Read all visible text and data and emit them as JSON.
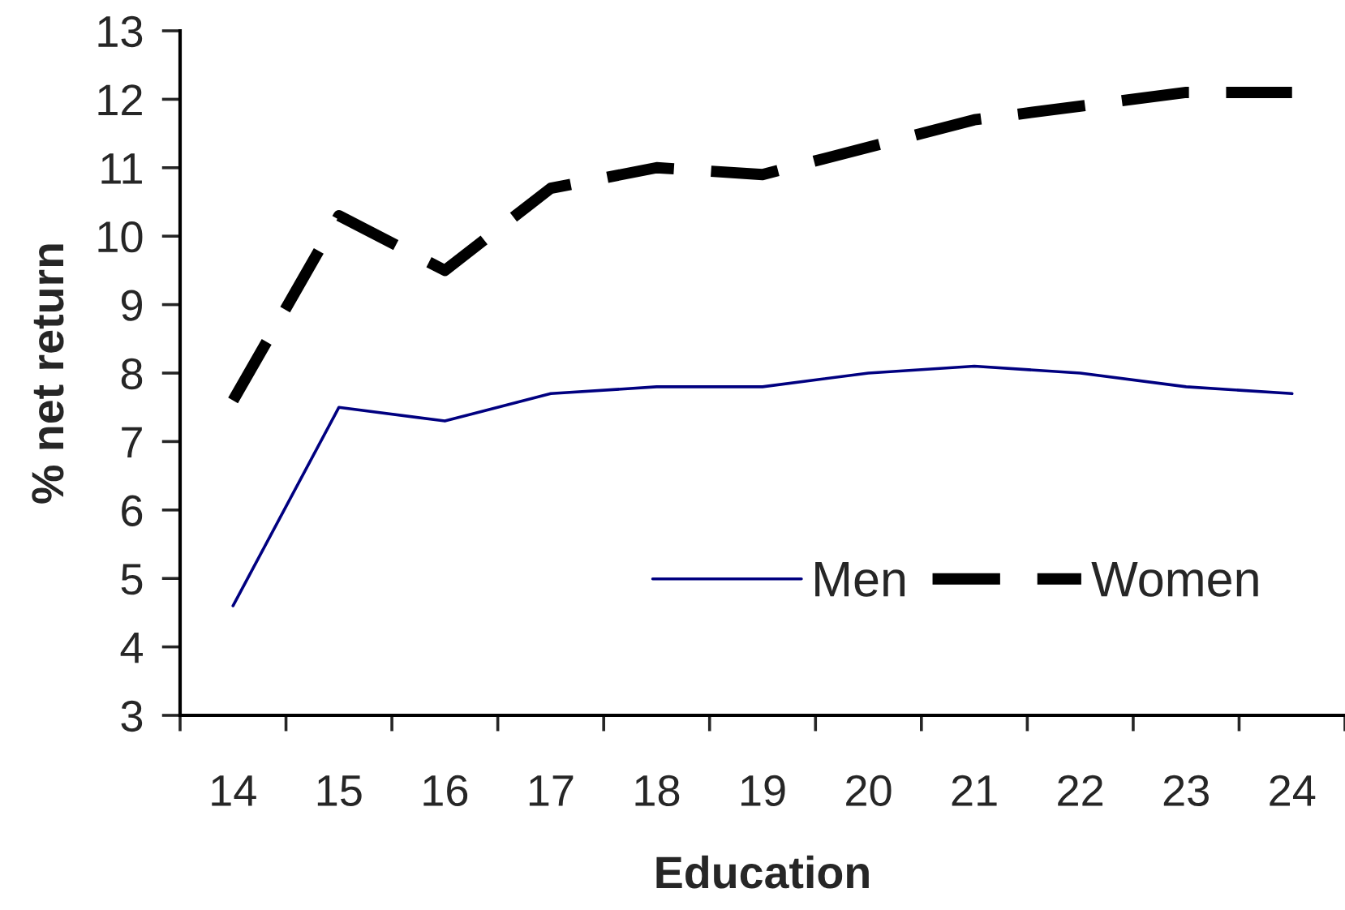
{
  "chart_data": {
    "type": "line",
    "xlabel": "Education",
    "ylabel": "% net return",
    "categories": [
      "14",
      "15",
      "16",
      "17",
      "18",
      "19",
      "20",
      "21",
      "22",
      "23",
      "24"
    ],
    "ylim": [
      3,
      13
    ],
    "yticks": [
      3,
      4,
      5,
      6,
      7,
      8,
      9,
      10,
      11,
      12,
      13
    ],
    "series": [
      {
        "name": "Men",
        "color": "#000080",
        "line_style": "solid",
        "values": [
          4.6,
          7.5,
          7.3,
          7.7,
          7.8,
          7.8,
          8.0,
          8.1,
          8.0,
          7.8,
          7.7
        ]
      },
      {
        "name": "Women",
        "color": "#000000",
        "line_style": "dashed",
        "values": [
          7.6,
          10.3,
          9.5,
          10.7,
          11.0,
          10.9,
          11.3,
          11.7,
          11.9,
          12.1,
          12.1
        ]
      }
    ],
    "legend": "bottom right"
  }
}
